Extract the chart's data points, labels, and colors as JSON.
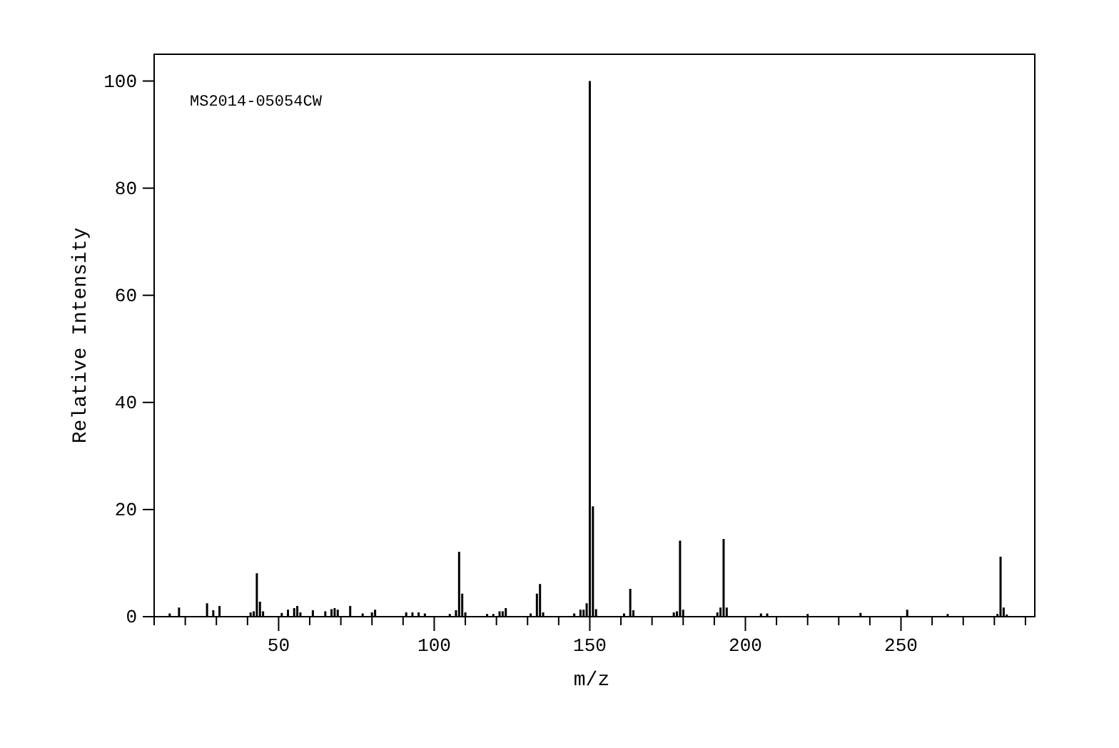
{
  "chart_data": {
    "type": "bar",
    "xlabel": "m/z",
    "ylabel": "Relative Intensity",
    "annotations": [
      "MS2014-05054CW"
    ],
    "color": "#000000",
    "x": [
      15,
      18,
      27,
      29,
      31,
      41,
      42,
      43,
      44,
      45,
      51,
      53,
      55,
      56,
      57,
      61,
      65,
      67,
      68,
      69,
      73,
      77,
      80,
      81,
      91,
      93,
      95,
      97,
      105,
      107,
      108,
      109,
      110,
      117,
      119,
      121,
      122,
      123,
      131,
      133,
      134,
      135,
      145,
      147,
      148,
      149,
      150,
      151,
      152,
      161,
      163,
      164,
      177,
      178,
      179,
      180,
      191,
      192,
      193,
      194,
      205,
      207,
      220,
      237,
      252,
      265,
      281,
      282,
      283,
      284
    ],
    "values": [
      0.6,
      1.7,
      2.5,
      1.2,
      2.0,
      0.8,
      1.0,
      8.1,
      2.8,
      1.0,
      0.7,
      1.3,
      1.6,
      2.0,
      0.8,
      1.2,
      1.0,
      1.4,
      1.6,
      1.3,
      2.0,
      0.6,
      0.8,
      1.3,
      0.8,
      0.8,
      0.8,
      0.6,
      0.5,
      1.2,
      12.1,
      4.3,
      0.8,
      0.5,
      0.5,
      1.0,
      1.0,
      1.6,
      0.6,
      4.3,
      6.1,
      0.8,
      0.6,
      1.3,
      1.3,
      2.5,
      100,
      20.6,
      1.4,
      0.6,
      5.2,
      1.2,
      0.8,
      1.0,
      14.2,
      1.3,
      0.8,
      1.7,
      14.5,
      1.7,
      0.6,
      0.6,
      0.5,
      0.7,
      1.3,
      0.5,
      0.5,
      11.2,
      1.7,
      0.4
    ],
    "xlim": [
      10,
      293
    ],
    "ylim": [
      0,
      105
    ],
    "xticks": [
      {
        "value": 10,
        "label": null
      },
      {
        "value": 20,
        "label": null
      },
      {
        "value": 30,
        "label": null
      },
      {
        "value": 40,
        "label": null
      },
      50,
      {
        "value": 60,
        "label": null
      },
      {
        "value": 70,
        "label": null
      },
      {
        "value": 80,
        "label": null
      },
      {
        "value": 90,
        "label": null
      },
      100,
      {
        "value": 110,
        "label": null
      },
      {
        "value": 120,
        "label": null
      },
      {
        "value": 130,
        "label": null
      },
      {
        "value": 140,
        "label": null
      },
      150,
      {
        "value": 160,
        "label": null
      },
      {
        "value": 170,
        "label": null
      },
      {
        "value": 180,
        "label": null
      },
      {
        "value": 190,
        "label": null
      },
      200,
      {
        "value": 210,
        "label": null
      },
      {
        "value": 220,
        "label": null
      },
      {
        "value": 230,
        "label": null
      },
      {
        "value": 240,
        "label": null
      },
      250,
      {
        "value": 260,
        "label": null
      },
      {
        "value": 270,
        "label": null
      },
      {
        "value": 280,
        "label": null
      },
      {
        "value": 290,
        "label": null
      }
    ],
    "yticks": [
      0,
      20,
      40,
      60,
      80,
      100
    ]
  }
}
